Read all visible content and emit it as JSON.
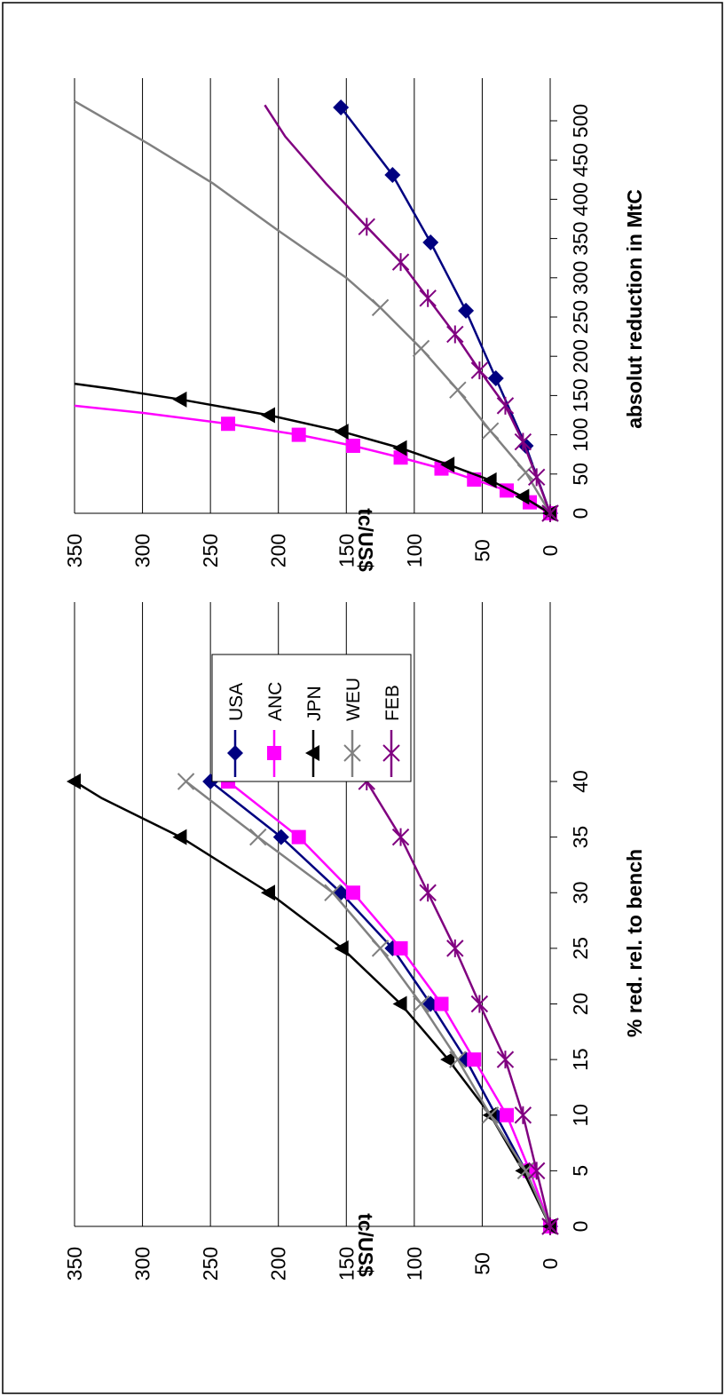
{
  "series_styles": [
    {
      "name": "USA",
      "color": "#000080",
      "marker": "diamond"
    },
    {
      "name": "ANC",
      "color": "#ff00ff",
      "marker": "square"
    },
    {
      "name": "JPN",
      "color": "#000000",
      "marker": "triangle"
    },
    {
      "name": "WEU",
      "color": "#808080",
      "marker": "x"
    },
    {
      "name": "FEB",
      "color": "#800080",
      "marker": "star"
    }
  ],
  "chart_data": [
    {
      "type": "line",
      "orientation": "rotated 90 degrees counter-clockwise",
      "xlabel": "% red. rel. to bench",
      "ylabel": "tc/US$",
      "xlim": [
        0,
        40
      ],
      "ylim": [
        0,
        350
      ],
      "x_ticks": [
        0,
        5,
        10,
        15,
        20,
        25,
        30,
        35,
        40
      ],
      "y_ticks": [
        0,
        50,
        100,
        150,
        200,
        250,
        300,
        350
      ],
      "grid": "horizontal major gridlines",
      "legend": "to the right, between the two charts",
      "series": [
        {
          "name": "USA",
          "x": [
            0,
            5,
            10,
            15,
            20,
            25,
            30,
            35,
            40
          ],
          "y": [
            0,
            18,
            40,
            62,
            88,
            116,
            154,
            198,
            250
          ]
        },
        {
          "name": "ANC",
          "x": [
            0,
            5,
            10,
            15,
            20,
            25,
            30,
            35,
            40
          ],
          "y": [
            0,
            15,
            32,
            56,
            80,
            110,
            145,
            185,
            237
          ]
        },
        {
          "name": "JPN",
          "x": [
            0,
            5,
            10,
            15,
            20,
            25,
            30,
            35,
            38.5,
            40
          ],
          "y": [
            0,
            20,
            44,
            75,
            110,
            153,
            207,
            272,
            330,
            350
          ]
        },
        {
          "name": "WEU",
          "x": [
            0,
            5,
            10,
            15,
            20,
            25,
            30,
            35,
            40
          ],
          "y": [
            0,
            18,
            44,
            68,
            95,
            125,
            160,
            215,
            268
          ]
        },
        {
          "name": "FEB",
          "x": [
            0,
            5,
            10,
            15,
            20,
            25,
            30,
            35,
            40
          ],
          "y": [
            0,
            10,
            20,
            33,
            52,
            70,
            90,
            110,
            135
          ]
        }
      ]
    },
    {
      "type": "line",
      "orientation": "rotated 90 degrees counter-clockwise",
      "xlabel": "absolut reduction in MtC",
      "ylabel": "tc/US$",
      "xlim": [
        0,
        520
      ],
      "ylim": [
        0,
        350
      ],
      "x_ticks": [
        0,
        50,
        100,
        150,
        200,
        250,
        300,
        350,
        400,
        450,
        500
      ],
      "y_ticks": [
        0,
        50,
        100,
        150,
        200,
        250,
        300,
        350
      ],
      "grid": "horizontal major gridlines",
      "series": [
        {
          "name": "USA",
          "x": [
            0,
            86,
            172,
            258,
            345,
            431,
            517
          ],
          "y": [
            0,
            18,
            40,
            62,
            88,
            116,
            154
          ]
        },
        {
          "name": "ANC",
          "x": [
            0,
            14,
            29,
            43,
            57,
            71,
            86,
            100,
            114,
            128,
            137
          ],
          "y": [
            0,
            15,
            32,
            56,
            80,
            110,
            145,
            185,
            237,
            300,
            350
          ]
        },
        {
          "name": "JPN",
          "x": [
            0,
            21,
            42,
            62,
            83,
            104,
            125,
            145,
            158,
            165
          ],
          "y": [
            0,
            20,
            44,
            75,
            110,
            153,
            207,
            272,
            320,
            350
          ]
        },
        {
          "name": "WEU",
          "x": [
            0,
            52,
            105,
            157,
            210,
            262,
            300,
            360,
            420,
            470,
            525
          ],
          "y": [
            0,
            18,
            44,
            68,
            95,
            125,
            150,
            200,
            248,
            295,
            350
          ]
        },
        {
          "name": "FEB",
          "x": [
            0,
            46,
            91,
            137,
            182,
            228,
            274,
            320,
            365,
            420,
            480,
            520
          ],
          "y": [
            0,
            10,
            20,
            33,
            52,
            70,
            90,
            110,
            135,
            165,
            195,
            210
          ]
        }
      ]
    }
  ]
}
